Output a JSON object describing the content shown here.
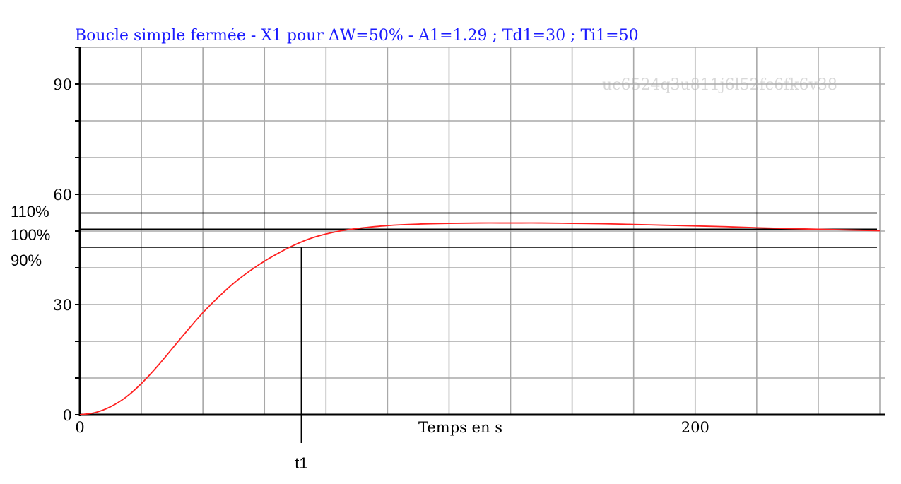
{
  "chart_data": {
    "type": "line",
    "title": "Boucle simple fermée - X1 pour ΔW=50% - A1=1.29 ; Td1=30 ; Ti1=50",
    "xlabel": "Temps en s",
    "ylabel": "",
    "xlim": [
      0,
      260
    ],
    "ylim": [
      0,
      100
    ],
    "x_tick_labels": [
      "0",
      "200"
    ],
    "y_tick_labels": [
      "0",
      "30",
      "60",
      "90"
    ],
    "grid": true,
    "watermark": "uc6524q3u811j6l52fc6fk6v38",
    "series": [
      {
        "x": [
          0,
          5,
          10,
          15,
          20,
          25,
          30,
          35,
          40,
          45,
          50,
          55,
          60,
          65,
          70,
          75,
          80,
          85,
          90,
          100,
          110,
          120,
          130,
          140,
          150,
          160,
          170,
          180,
          190,
          200,
          210,
          220,
          230,
          240,
          250,
          260
        ],
        "y": [
          0,
          0.6,
          2.2,
          4.8,
          8.5,
          13.0,
          18.0,
          23.0,
          27.8,
          32.0,
          35.8,
          39.0,
          41.8,
          44.2,
          46.3,
          48.0,
          49.2,
          50.1,
          50.7,
          51.5,
          51.9,
          52.1,
          52.2,
          52.2,
          52.2,
          52.1,
          52.0,
          51.8,
          51.6,
          51.4,
          51.2,
          50.9,
          50.7,
          50.5,
          50.3,
          50.1
        ],
        "color": "#ff2020"
      }
    ],
    "reference_lines": [
      {
        "label": "110%",
        "y": 54.9
      },
      {
        "label": "100%",
        "y": 50.5
      },
      {
        "label": "90%",
        "y": 45.6
      }
    ],
    "marker": {
      "label": "t1",
      "x": 72,
      "y": 45.6
    }
  }
}
